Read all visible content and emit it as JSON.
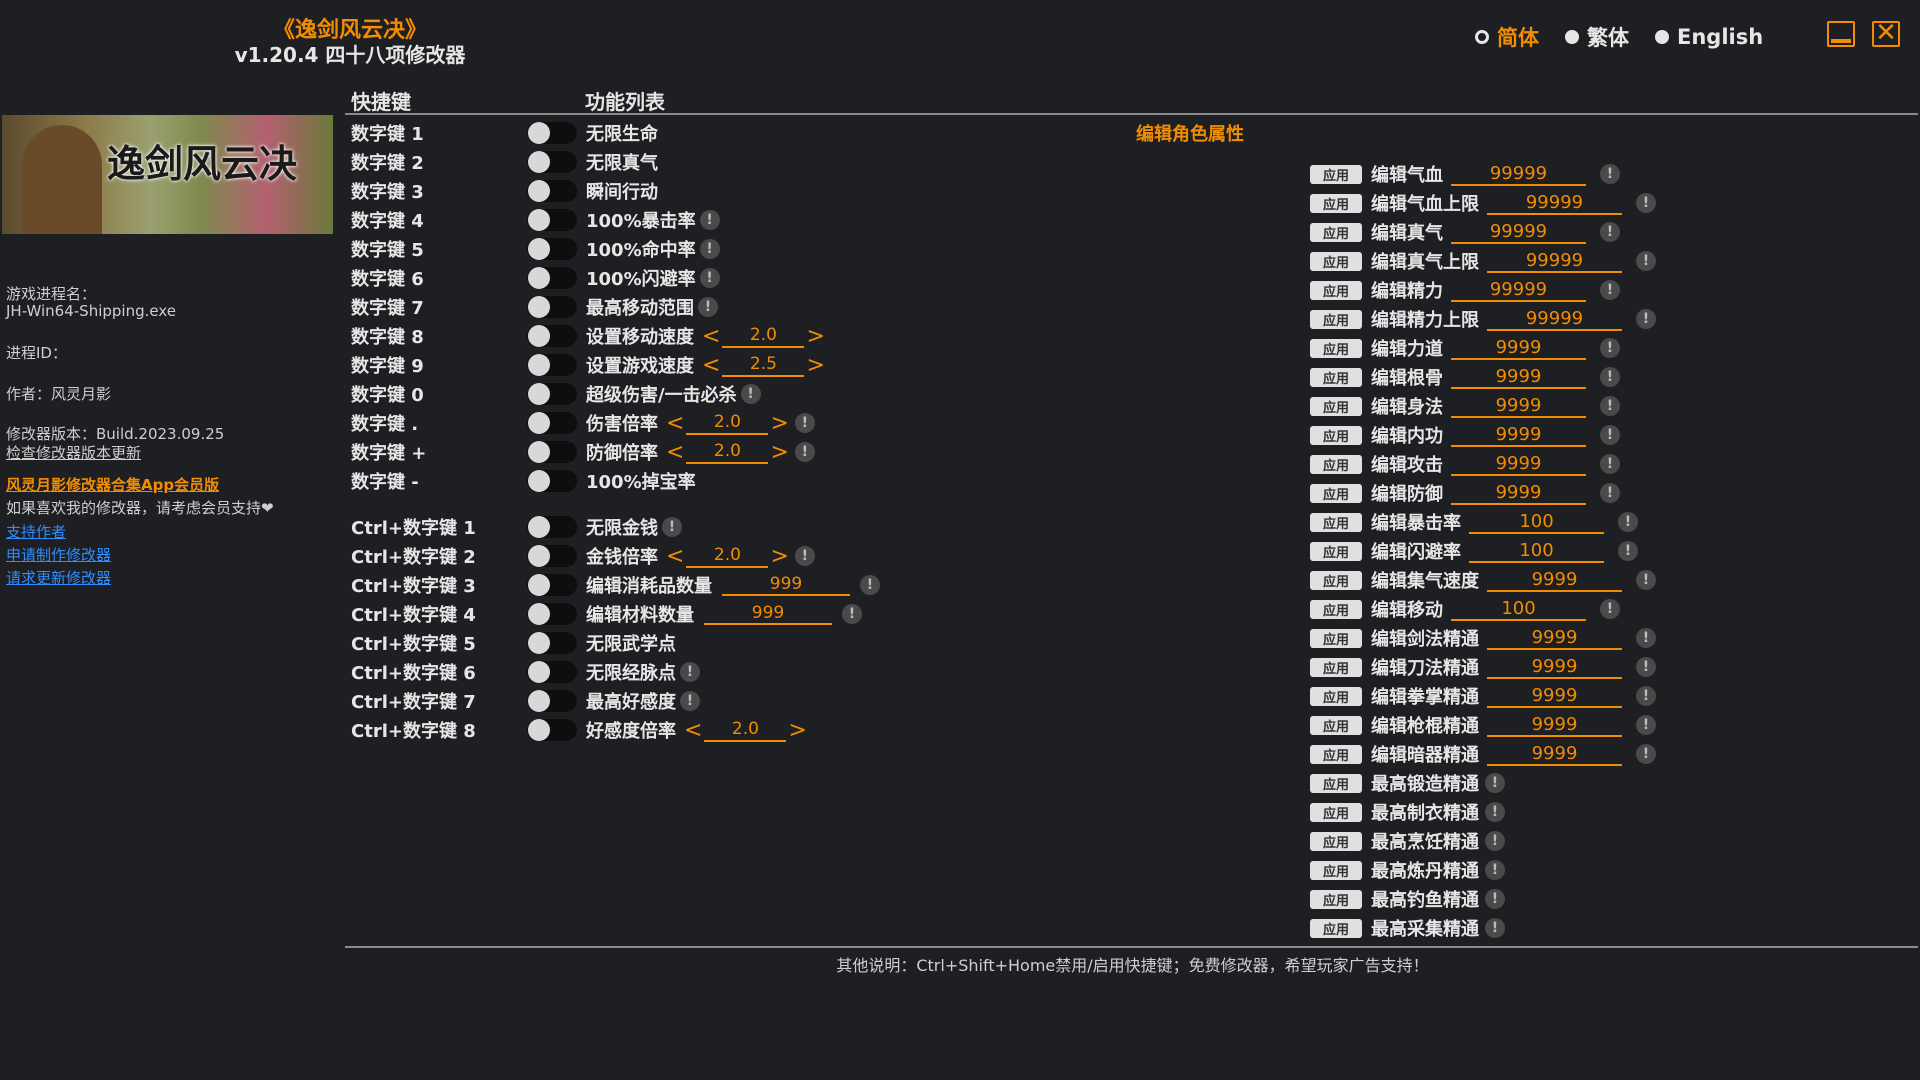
{
  "header": {
    "title": "《逸剑风云决》",
    "subtitle": "v1.20.4 四十八项修改器"
  },
  "languages": [
    {
      "label": "简体",
      "selected": true
    },
    {
      "label": "繁体",
      "selected": false
    },
    {
      "label": "English",
      "selected": false
    }
  ],
  "accent": "#f28c00",
  "columns": {
    "hotkey": "快捷键",
    "features": "功能列表"
  },
  "banner": {
    "logo_text": "逸剑风云决"
  },
  "info": {
    "process_label": "游戏进程名：",
    "process_value": "JH-Win64-Shipping.exe",
    "pid_label": "进程ID：",
    "author": "作者：风灵月影",
    "version": "修改器版本：Build.2023.09.25",
    "check_update": "检查修改器版本更新",
    "vip_link": "风灵月影修改器合集App会员版",
    "support_text": "如果喜欢我的修改器，请考虑会员支持",
    "heart_icon": "❤",
    "links": [
      "支持作者",
      "申请制作修改器",
      "请求更新修改器"
    ]
  },
  "cheats": [
    {
      "hotkey": "数字键 1",
      "label": "无限生命"
    },
    {
      "hotkey": "数字键 2",
      "label": "无限真气"
    },
    {
      "hotkey": "数字键 3",
      "label": "瞬间行动"
    },
    {
      "hotkey": "数字键 4",
      "label": "100%暴击率",
      "info": true
    },
    {
      "hotkey": "数字键 5",
      "label": "100%命中率",
      "info": true
    },
    {
      "hotkey": "数字键 6",
      "label": "100%闪避率",
      "info": true
    },
    {
      "hotkey": "数字键 7",
      "label": "最高移动范围",
      "info": true
    },
    {
      "hotkey": "数字键 8",
      "label": "设置移动速度",
      "stepper": "2.0"
    },
    {
      "hotkey": "数字键 9",
      "label": "设置游戏速度",
      "stepper": "2.5"
    },
    {
      "hotkey": "数字键 0",
      "label": "超级伤害/一击必杀",
      "info": true
    },
    {
      "hotkey": "数字键 .",
      "label": "伤害倍率",
      "stepper": "2.0",
      "info": true
    },
    {
      "hotkey": "数字键 +",
      "label": "防御倍率",
      "stepper": "2.0",
      "info": true
    },
    {
      "hotkey": "数字键 -",
      "label": "100%掉宝率"
    }
  ],
  "ctrl_cheats": [
    {
      "hotkey": "Ctrl+数字键 1",
      "label": "无限金钱",
      "info": true
    },
    {
      "hotkey": "Ctrl+数字键 2",
      "label": "金钱倍率",
      "stepper": "2.0",
      "info": true
    },
    {
      "hotkey": "Ctrl+数字键 3",
      "label": "编辑消耗品数量",
      "input": "999",
      "info": true
    },
    {
      "hotkey": "Ctrl+数字键 4",
      "label": "编辑材料数量",
      "input": "999",
      "info": true
    },
    {
      "hotkey": "Ctrl+数字键 5",
      "label": "无限武学点"
    },
    {
      "hotkey": "Ctrl+数字键 6",
      "label": "无限经脉点",
      "info": true
    },
    {
      "hotkey": "Ctrl+数字键 7",
      "label": "最高好感度",
      "info": true
    },
    {
      "hotkey": "Ctrl+数字键 8",
      "label": "好感度倍率",
      "stepper": "2.0"
    }
  ],
  "edit_section": {
    "title": "编辑角色属性",
    "apply_label": "应用",
    "items": [
      {
        "label": "编辑气血",
        "value": "99999"
      },
      {
        "label": "编辑气血上限",
        "value": "99999"
      },
      {
        "label": "编辑真气",
        "value": "99999"
      },
      {
        "label": "编辑真气上限",
        "value": "99999"
      },
      {
        "label": "编辑精力",
        "value": "99999"
      },
      {
        "label": "编辑精力上限",
        "value": "99999"
      },
      {
        "label": "编辑力道",
        "value": "9999"
      },
      {
        "label": "编辑根骨",
        "value": "9999"
      },
      {
        "label": "编辑身法",
        "value": "9999"
      },
      {
        "label": "编辑内功",
        "value": "9999"
      },
      {
        "label": "编辑攻击",
        "value": "9999"
      },
      {
        "label": "编辑防御",
        "value": "9999"
      },
      {
        "label": "编辑暴击率",
        "value": "100"
      },
      {
        "label": "编辑闪避率",
        "value": "100"
      },
      {
        "label": "编辑集气速度",
        "value": "9999"
      },
      {
        "label": "编辑移动",
        "value": "100"
      },
      {
        "label": "编辑剑法精通",
        "value": "9999"
      },
      {
        "label": "编辑刀法精通",
        "value": "9999"
      },
      {
        "label": "编辑拳掌精通",
        "value": "9999"
      },
      {
        "label": "编辑枪棍精通",
        "value": "9999"
      },
      {
        "label": "编辑暗器精通",
        "value": "9999"
      },
      {
        "label": "最高锻造精通"
      },
      {
        "label": "最高制衣精通"
      },
      {
        "label": "最高烹饪精通"
      },
      {
        "label": "最高炼丹精通"
      },
      {
        "label": "最高钓鱼精通"
      },
      {
        "label": "最高采集精通"
      }
    ]
  },
  "footer": "其他说明：Ctrl+Shift+Home禁用/启用快捷键；免费修改器，希望玩家广告支持！"
}
